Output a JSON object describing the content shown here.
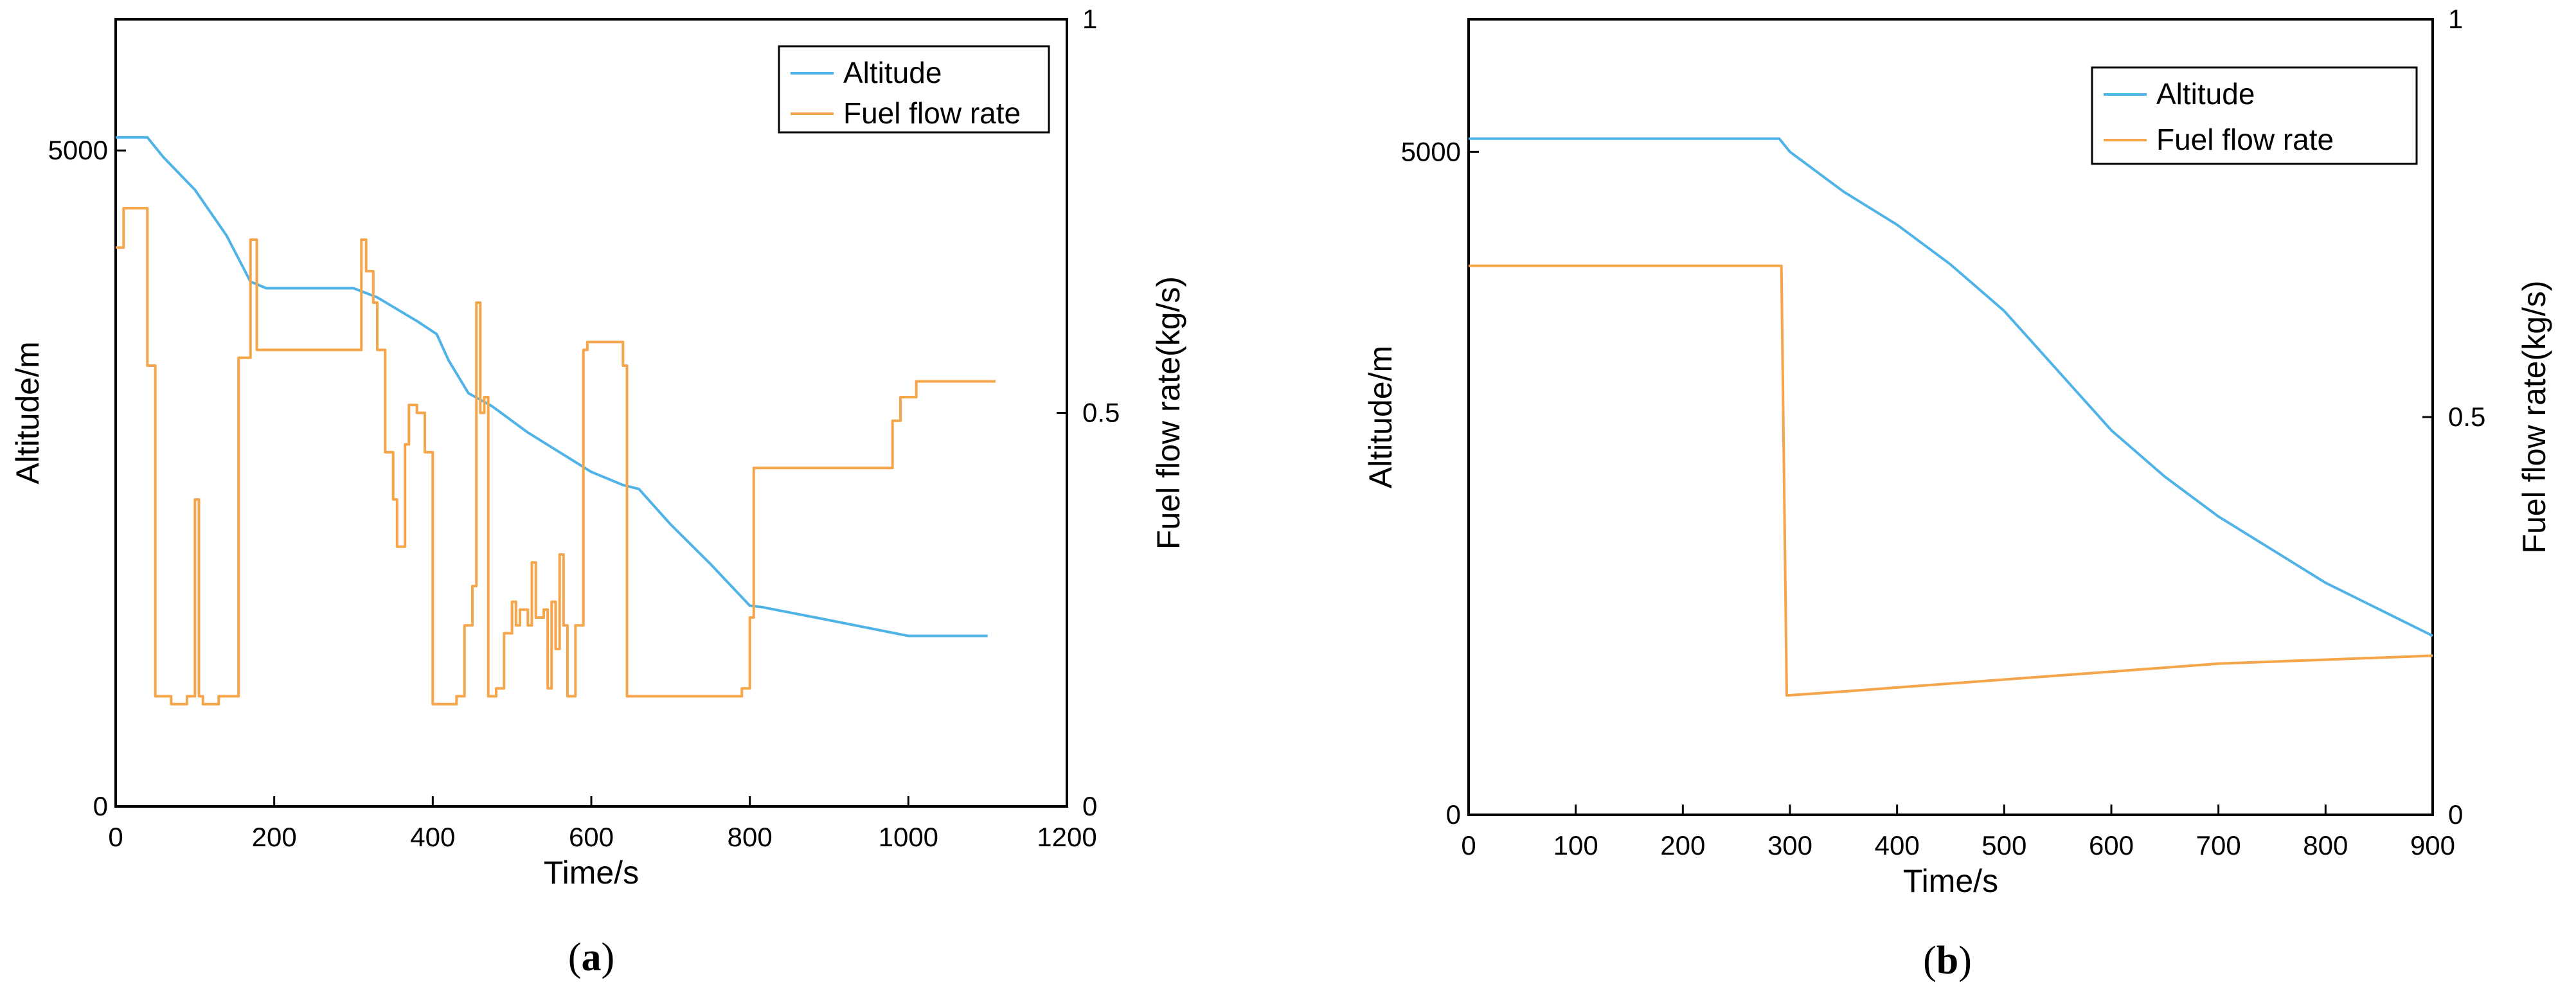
{
  "chart_data": [
    {
      "type": "line",
      "caption_letter": "a",
      "xlabel": "Time/s",
      "ylabel_left": "Altitude/m",
      "ylabel_right": "Fuel flow rate(kg/s)",
      "xlim": [
        0,
        1200
      ],
      "x_ticks": [
        "0",
        "200",
        "400",
        "600",
        "800",
        "1000",
        "1200"
      ],
      "ylim_left": [
        0,
        6000
      ],
      "y_ticks_left": [
        "0",
        "5000"
      ],
      "ylim_right": [
        0,
        1
      ],
      "y_ticks_right": [
        "0",
        "0.5",
        "1"
      ],
      "legend_position": "top-right",
      "series": [
        {
          "name": "Altitude",
          "axis": "left",
          "color": "#4fb3e8",
          "points": [
            [
              0,
              5100
            ],
            [
              40,
              5100
            ],
            [
              60,
              4950
            ],
            [
              100,
              4700
            ],
            [
              140,
              4350
            ],
            [
              170,
              4000
            ],
            [
              190,
              3950
            ],
            [
              300,
              3950
            ],
            [
              330,
              3880
            ],
            [
              380,
              3700
            ],
            [
              405,
              3600
            ],
            [
              420,
              3400
            ],
            [
              445,
              3150
            ],
            [
              475,
              3050
            ],
            [
              520,
              2850
            ],
            [
              560,
              2700
            ],
            [
              600,
              2550
            ],
            [
              640,
              2450
            ],
            [
              660,
              2420
            ],
            [
              700,
              2150
            ],
            [
              750,
              1850
            ],
            [
              800,
              1530
            ],
            [
              815,
              1520
            ],
            [
              900,
              1420
            ],
            [
              1000,
              1300
            ],
            [
              1040,
              1300
            ],
            [
              1100,
              1300
            ]
          ]
        },
        {
          "name": "Fuel flow rate",
          "axis": "right",
          "color": "#f5a54a",
          "points": [
            [
              0,
              0.71
            ],
            [
              10,
              0.71
            ],
            [
              10,
              0.76
            ],
            [
              40,
              0.76
            ],
            [
              40,
              0.56
            ],
            [
              50,
              0.56
            ],
            [
              50,
              0.14
            ],
            [
              70,
              0.14
            ],
            [
              70,
              0.13
            ],
            [
              90,
              0.13
            ],
            [
              90,
              0.14
            ],
            [
              100,
              0.14
            ],
            [
              100,
              0.39
            ],
            [
              105,
              0.39
            ],
            [
              105,
              0.14
            ],
            [
              110,
              0.14
            ],
            [
              110,
              0.13
            ],
            [
              130,
              0.13
            ],
            [
              130,
              0.14
            ],
            [
              155,
              0.14
            ],
            [
              155,
              0.57
            ],
            [
              170,
              0.57
            ],
            [
              170,
              0.72
            ],
            [
              178,
              0.72
            ],
            [
              178,
              0.58
            ],
            [
              310,
              0.58
            ],
            [
              310,
              0.72
            ],
            [
              316,
              0.72
            ],
            [
              316,
              0.68
            ],
            [
              325,
              0.68
            ],
            [
              325,
              0.64
            ],
            [
              330,
              0.64
            ],
            [
              330,
              0.58
            ],
            [
              340,
              0.58
            ],
            [
              340,
              0.45
            ],
            [
              350,
              0.45
            ],
            [
              350,
              0.39
            ],
            [
              355,
              0.39
            ],
            [
              355,
              0.33
            ],
            [
              365,
              0.33
            ],
            [
              365,
              0.46
            ],
            [
              370,
              0.46
            ],
            [
              370,
              0.51
            ],
            [
              380,
              0.51
            ],
            [
              380,
              0.5
            ],
            [
              390,
              0.5
            ],
            [
              390,
              0.45
            ],
            [
              400,
              0.45
            ],
            [
              400,
              0.13
            ],
            [
              430,
              0.13
            ],
            [
              430,
              0.14
            ],
            [
              440,
              0.14
            ],
            [
              440,
              0.23
            ],
            [
              450,
              0.23
            ],
            [
              450,
              0.28
            ],
            [
              455,
              0.28
            ],
            [
              455,
              0.64
            ],
            [
              460,
              0.64
            ],
            [
              460,
              0.5
            ],
            [
              465,
              0.5
            ],
            [
              465,
              0.52
            ],
            [
              470,
              0.52
            ],
            [
              470,
              0.14
            ],
            [
              480,
              0.14
            ],
            [
              480,
              0.15
            ],
            [
              490,
              0.15
            ],
            [
              490,
              0.22
            ],
            [
              500,
              0.22
            ],
            [
              500,
              0.26
            ],
            [
              505,
              0.26
            ],
            [
              505,
              0.23
            ],
            [
              510,
              0.23
            ],
            [
              510,
              0.25
            ],
            [
              520,
              0.25
            ],
            [
              520,
              0.23
            ],
            [
              525,
              0.23
            ],
            [
              525,
              0.31
            ],
            [
              530,
              0.31
            ],
            [
              530,
              0.24
            ],
            [
              540,
              0.24
            ],
            [
              540,
              0.25
            ],
            [
              545,
              0.25
            ],
            [
              545,
              0.15
            ],
            [
              550,
              0.15
            ],
            [
              550,
              0.26
            ],
            [
              555,
              0.26
            ],
            [
              555,
              0.2
            ],
            [
              560,
              0.2
            ],
            [
              560,
              0.32
            ],
            [
              565,
              0.32
            ],
            [
              565,
              0.23
            ],
            [
              570,
              0.23
            ],
            [
              570,
              0.14
            ],
            [
              580,
              0.14
            ],
            [
              580,
              0.23
            ],
            [
              590,
              0.23
            ],
            [
              590,
              0.58
            ],
            [
              595,
              0.58
            ],
            [
              595,
              0.59
            ],
            [
              640,
              0.59
            ],
            [
              640,
              0.56
            ],
            [
              645,
              0.56
            ],
            [
              645,
              0.14
            ],
            [
              700,
              0.14
            ],
            [
              790,
              0.14
            ],
            [
              790,
              0.15
            ],
            [
              800,
              0.15
            ],
            [
              800,
              0.24
            ],
            [
              805,
              0.24
            ],
            [
              805,
              0.43
            ],
            [
              980,
              0.43
            ],
            [
              980,
              0.49
            ],
            [
              990,
              0.49
            ],
            [
              990,
              0.52
            ],
            [
              1010,
              0.52
            ],
            [
              1010,
              0.54
            ],
            [
              1110,
              0.54
            ]
          ]
        }
      ]
    },
    {
      "type": "line",
      "caption_letter": "b",
      "xlabel": "Time/s",
      "ylabel_left": "Altitude/m",
      "ylabel_right": "Fuel flow rate(kg/s)",
      "xlim": [
        0,
        900
      ],
      "x_ticks": [
        "0",
        "100",
        "200",
        "300",
        "400",
        "500",
        "600",
        "700",
        "800",
        "900"
      ],
      "ylim_left": [
        0,
        6000
      ],
      "y_ticks_left": [
        "0",
        "5000"
      ],
      "ylim_right": [
        0,
        1
      ],
      "y_ticks_right": [
        "0",
        "0.5",
        "1"
      ],
      "legend_position": "top-right",
      "series": [
        {
          "name": "Altitude",
          "axis": "left",
          "color": "#4fb3e8",
          "points": [
            [
              0,
              5100
            ],
            [
              290,
              5100
            ],
            [
              300,
              5000
            ],
            [
              350,
              4700
            ],
            [
              400,
              4450
            ],
            [
              450,
              4150
            ],
            [
              500,
              3800
            ],
            [
              550,
              3350
            ],
            [
              600,
              2900
            ],
            [
              650,
              2550
            ],
            [
              700,
              2250
            ],
            [
              750,
              2000
            ],
            [
              800,
              1750
            ],
            [
              850,
              1550
            ],
            [
              900,
              1350
            ]
          ]
        },
        {
          "name": "Fuel flow rate",
          "axis": "right",
          "color": "#f5a54a",
          "points": [
            [
              0,
              0.69
            ],
            [
              292,
              0.69
            ],
            [
              297,
              0.15
            ],
            [
              350,
              0.155
            ],
            [
              400,
              0.16
            ],
            [
              500,
              0.17
            ],
            [
              600,
              0.18
            ],
            [
              700,
              0.19
            ],
            [
              800,
              0.195
            ],
            [
              900,
              0.2
            ]
          ]
        }
      ]
    }
  ]
}
